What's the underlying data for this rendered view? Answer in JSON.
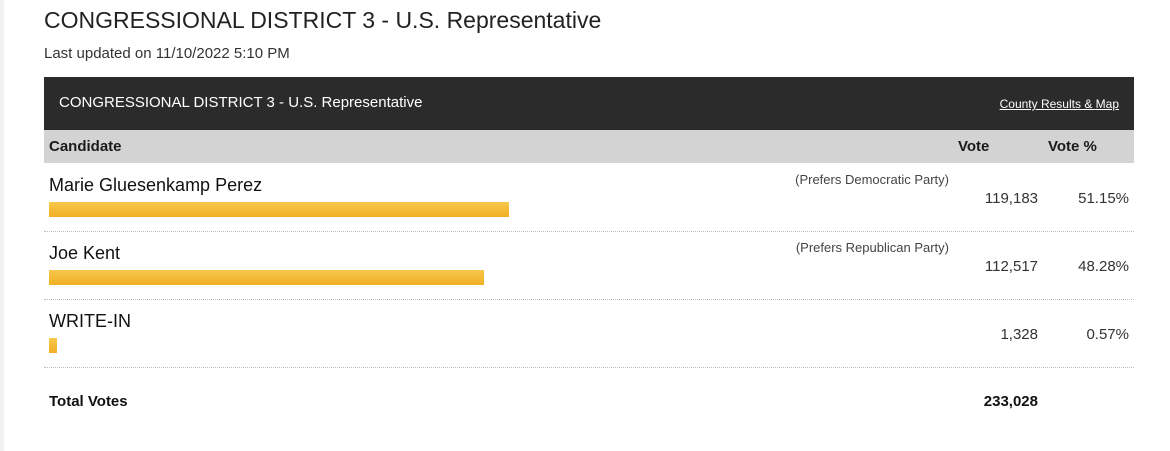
{
  "page": {
    "title": "CONGRESSIONAL DISTRICT 3 - U.S. Representative",
    "last_updated": "Last updated on 11/10/2022 5:10 PM"
  },
  "race": {
    "title": "CONGRESSIONAL DISTRICT 3 - U.S. Representative",
    "link_label": "County Results & Map"
  },
  "columns": {
    "candidate": "Candidate",
    "vote": "Vote",
    "vote_pct": "Vote %"
  },
  "candidates": [
    {
      "name": "Marie Gluesenkamp Perez",
      "party": "(Prefers Democratic Party)",
      "votes": "119,183",
      "pct": "51.15%",
      "share": 0.5115
    },
    {
      "name": "Joe Kent",
      "party": "(Prefers Republican Party)",
      "votes": "112,517",
      "pct": "48.28%",
      "share": 0.4828
    },
    {
      "name": "WRITE-IN",
      "party": "",
      "votes": "1,328",
      "pct": "0.57%",
      "share": 0.0057
    }
  ],
  "totals": {
    "label": "Total Votes",
    "votes": "233,028"
  },
  "colors": {
    "header_bg": "#2b2b2b",
    "column_header_bg": "#d3d3d3",
    "bar": "#f3b92f"
  }
}
